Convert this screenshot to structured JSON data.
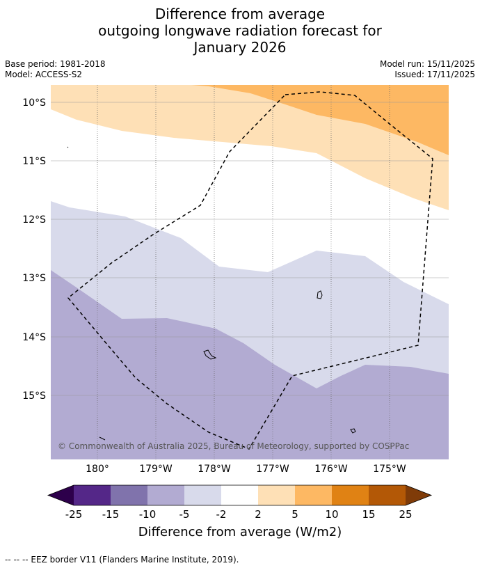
{
  "title": {
    "line1": "Difference from average",
    "line2": "outgoing longwave radiation forecast for",
    "line3": "January 2026"
  },
  "meta": {
    "base_period": "Base period: 1981-2018",
    "model": "Model: ACCESS-S2",
    "model_run": "Model run: 15/11/2025",
    "issued": "Issued: 17/11/2025"
  },
  "map": {
    "lat_labels": [
      "10°S",
      "11°S",
      "12°S",
      "13°S",
      "14°S",
      "15°S"
    ],
    "lon_labels": [
      "180°",
      "179°W",
      "178°W",
      "177°W",
      "176°W",
      "175°W"
    ],
    "copyright": "© Commonwealth of Australia 2025, Bureau of Meteorology, supported by COSPPac",
    "colors": {
      "orange_mid": "#fdb863",
      "orange_light": "#fee0b6",
      "white": "#ffffff",
      "lavender_light": "#d8daeb",
      "lavender": "#b2abd2"
    }
  },
  "colorbar": {
    "ticks": [
      "-25",
      "-15",
      "-10",
      "-5",
      "-2",
      "2",
      "5",
      "10",
      "15",
      "25"
    ],
    "label": "Difference from average (W/m2)",
    "colors": [
      "#2d004b",
      "#542788",
      "#8073ac",
      "#b2abd2",
      "#d8daeb",
      "#ffffff",
      "#fee0b6",
      "#fdb863",
      "#e08214",
      "#b35806",
      "#7f3b08"
    ]
  },
  "footnote": "--  --  -- EEZ border V11 (Flanders Marine Institute, 2019)."
}
